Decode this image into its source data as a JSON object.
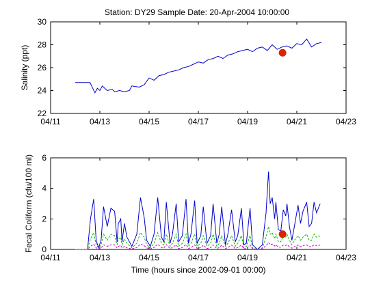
{
  "figure": {
    "title": "Station: DY29  Sample Date: 20-Apr-2004 10:00:00"
  },
  "chart_data": [
    {
      "type": "line",
      "title": "Station: DY29  Sample Date: 20-Apr-2004 10:00:00",
      "xlabel": "",
      "ylabel": "Salinity (ppt)",
      "xlim_days": [
        11,
        23
      ],
      "ylim": [
        22,
        30
      ],
      "x_ticks": [
        "04/11",
        "04/13",
        "04/15",
        "04/17",
        "04/19",
        "04/21",
        "04/23"
      ],
      "y_ticks": [
        "22",
        "24",
        "26",
        "28",
        "30"
      ],
      "grid": false,
      "series": [
        {
          "color": "#0000cc",
          "style": "solid",
          "x_days": [
            12.0,
            12.4,
            12.6,
            12.8,
            12.9,
            13.0,
            13.1,
            13.2,
            13.3,
            13.5,
            13.6,
            13.8,
            14.0,
            14.2,
            14.3,
            14.6,
            14.8,
            15.0,
            15.2,
            15.4,
            15.6,
            15.8,
            16.0,
            16.2,
            16.4,
            16.6,
            16.8,
            17.0,
            17.2,
            17.4,
            17.6,
            17.8,
            18.0,
            18.2,
            18.4,
            18.6,
            18.8,
            19.0,
            19.2,
            19.4,
            19.6,
            19.8,
            20.0,
            20.2,
            20.4,
            20.6,
            20.8,
            21.0,
            21.2,
            21.4,
            21.6,
            21.8,
            22.0
          ],
          "values": [
            24.7,
            24.7,
            24.7,
            23.8,
            24.2,
            24.0,
            24.4,
            24.2,
            24.0,
            24.1,
            23.9,
            24.0,
            23.9,
            24.0,
            24.4,
            24.3,
            24.5,
            25.1,
            24.9,
            25.3,
            25.4,
            25.6,
            25.7,
            25.8,
            26.0,
            26.1,
            26.3,
            26.5,
            26.4,
            26.7,
            26.8,
            27.0,
            26.8,
            27.1,
            27.2,
            27.4,
            27.5,
            27.6,
            27.4,
            27.7,
            27.8,
            27.5,
            28.0,
            27.6,
            27.8,
            27.9,
            27.7,
            28.1,
            28.0,
            28.5,
            27.8,
            28.1,
            28.2
          ]
        }
      ],
      "sample": {
        "color": "#dd2200",
        "x_days": 20.42,
        "value": 27.3
      }
    },
    {
      "type": "line",
      "title": "",
      "xlabel": "Time (hours since 2002-09-01 00:00)",
      "ylabel": "Fecal Coliform (cfu/100 ml)",
      "xlim_days": [
        11,
        23
      ],
      "ylim": [
        0,
        6
      ],
      "x_ticks": [
        "04/11",
        "04/13",
        "04/15",
        "04/17",
        "04/19",
        "04/21",
        "04/23"
      ],
      "y_ticks": [
        "0",
        "2",
        "4",
        "6"
      ],
      "grid": false,
      "series": [
        {
          "color": "#0000cc",
          "style": "solid",
          "x_days": [
            12.0,
            12.5,
            12.62,
            12.75,
            12.85,
            12.95,
            13.05,
            13.15,
            13.3,
            13.45,
            13.6,
            13.7,
            13.75,
            13.85,
            13.9,
            14.0,
            14.1,
            14.3,
            14.5,
            14.65,
            14.8,
            14.9,
            15.05,
            15.2,
            15.35,
            15.5,
            15.6,
            15.7,
            15.85,
            15.95,
            16.1,
            16.2,
            16.35,
            16.5,
            16.6,
            16.7,
            16.85,
            16.95,
            17.1,
            17.2,
            17.35,
            17.5,
            17.6,
            17.75,
            17.85,
            17.95,
            18.1,
            18.2,
            18.35,
            18.5,
            18.6,
            18.75,
            18.85,
            18.95,
            19.1,
            19.2,
            19.4,
            19.6,
            19.75,
            19.85,
            19.92,
            20.0,
            20.1,
            20.15,
            20.25,
            20.35,
            20.45,
            20.55,
            20.6,
            20.7,
            20.8,
            20.9,
            21.05,
            21.15,
            21.25,
            21.4,
            21.5,
            21.6,
            21.7,
            21.8,
            21.95
          ],
          "values": [
            0.0,
            0.0,
            2.0,
            3.3,
            0.6,
            0.1,
            0.6,
            2.8,
            1.5,
            2.7,
            2.5,
            0.5,
            1.7,
            2.0,
            0.5,
            1.7,
            0.8,
            0.2,
            1.0,
            3.4,
            2.1,
            0.6,
            0.2,
            1.0,
            3.4,
            0.8,
            0.5,
            3.1,
            0.4,
            1.0,
            3.0,
            0.5,
            0.9,
            3.3,
            0.4,
            1.0,
            3.2,
            0.4,
            0.9,
            2.8,
            0.4,
            0.9,
            3.0,
            0.4,
            1.0,
            2.8,
            0.3,
            1.0,
            2.6,
            0.5,
            0.9,
            2.7,
            0.3,
            0.4,
            2.7,
            0.3,
            0.0,
            0.3,
            2.4,
            5.1,
            3.0,
            3.4,
            2.0,
            3.1,
            1.3,
            1.2,
            2.6,
            2.2,
            3.0,
            1.5,
            0.6,
            1.5,
            2.9,
            1.7,
            2.5,
            3.1,
            1.5,
            1.7,
            3.1,
            2.4,
            3.0
          ]
        },
        {
          "color": "#00bb00",
          "style": "dashed",
          "x_days": [
            12.0,
            12.5,
            12.62,
            12.75,
            12.85,
            12.95,
            13.05,
            13.15,
            13.3,
            13.45,
            13.6,
            13.7,
            13.75,
            13.85,
            13.9,
            14.0,
            14.1,
            14.3,
            14.5,
            14.65,
            14.8,
            14.9,
            15.05,
            15.2,
            15.35,
            15.5,
            15.6,
            15.7,
            15.85,
            15.95,
            16.1,
            16.2,
            16.35,
            16.5,
            16.6,
            16.7,
            16.85,
            16.95,
            17.1,
            17.2,
            17.35,
            17.5,
            17.6,
            17.75,
            17.85,
            17.95,
            18.1,
            18.2,
            18.35,
            18.5,
            18.6,
            18.75,
            18.85,
            18.95,
            19.1,
            19.2,
            19.4,
            19.6,
            19.75,
            19.85,
            19.92,
            20.0,
            20.1,
            20.15,
            20.25,
            20.35,
            20.45,
            20.55,
            20.6,
            20.7,
            20.8,
            20.9,
            21.05,
            21.15,
            21.25,
            21.4,
            21.5,
            21.6,
            21.7,
            21.8,
            21.95
          ],
          "values": [
            0.0,
            0.0,
            0.7,
            1.1,
            0.3,
            0.1,
            0.3,
            1.0,
            0.6,
            1.0,
            0.9,
            0.3,
            0.7,
            0.8,
            0.3,
            0.7,
            0.4,
            0.1,
            0.4,
            1.1,
            0.8,
            0.3,
            0.1,
            0.4,
            1.1,
            0.4,
            0.3,
            1.0,
            0.2,
            0.4,
            1.0,
            0.2,
            0.4,
            1.0,
            0.2,
            0.4,
            1.0,
            0.2,
            0.4,
            0.9,
            0.2,
            0.4,
            1.0,
            0.2,
            0.4,
            0.9,
            0.2,
            0.4,
            0.9,
            0.2,
            0.4,
            0.9,
            0.1,
            0.2,
            0.9,
            0.1,
            0.0,
            0.1,
            0.8,
            1.5,
            1.0,
            1.1,
            0.7,
            1.0,
            0.5,
            0.5,
            0.9,
            0.8,
            1.0,
            0.6,
            0.3,
            0.6,
            0.9,
            0.6,
            0.8,
            1.0,
            0.6,
            0.6,
            1.0,
            0.8,
            0.9
          ]
        },
        {
          "color": "#cc00cc",
          "style": "dashed",
          "x_days": [
            12.0,
            12.5,
            12.62,
            12.75,
            12.85,
            12.95,
            13.05,
            13.15,
            13.3,
            13.45,
            13.6,
            13.7,
            13.75,
            13.85,
            13.9,
            14.0,
            14.1,
            14.3,
            14.5,
            14.65,
            14.8,
            14.9,
            15.05,
            15.2,
            15.35,
            15.5,
            15.6,
            15.7,
            15.85,
            15.95,
            16.1,
            16.2,
            16.35,
            16.5,
            16.6,
            16.7,
            16.85,
            16.95,
            17.1,
            17.2,
            17.35,
            17.5,
            17.6,
            17.75,
            17.85,
            17.95,
            18.1,
            18.2,
            18.35,
            18.5,
            18.6,
            18.75,
            18.85,
            18.95,
            19.1,
            19.2,
            19.4,
            19.6,
            19.75,
            19.85,
            19.92,
            20.0,
            20.1,
            20.15,
            20.25,
            20.35,
            20.45,
            20.55,
            20.6,
            20.7,
            20.8,
            20.9,
            21.05,
            21.15,
            21.25,
            21.4,
            21.5,
            21.6,
            21.7,
            21.8,
            21.95
          ],
          "values": [
            0.0,
            0.0,
            0.2,
            0.35,
            0.1,
            0.03,
            0.1,
            0.3,
            0.2,
            0.3,
            0.3,
            0.1,
            0.2,
            0.25,
            0.1,
            0.2,
            0.1,
            0.03,
            0.12,
            0.35,
            0.25,
            0.1,
            0.03,
            0.12,
            0.35,
            0.12,
            0.1,
            0.32,
            0.06,
            0.12,
            0.3,
            0.06,
            0.12,
            0.32,
            0.06,
            0.12,
            0.3,
            0.06,
            0.12,
            0.28,
            0.06,
            0.12,
            0.3,
            0.06,
            0.12,
            0.28,
            0.06,
            0.12,
            0.28,
            0.06,
            0.12,
            0.28,
            0.04,
            0.06,
            0.28,
            0.04,
            0.0,
            0.04,
            0.25,
            0.45,
            0.3,
            0.35,
            0.22,
            0.3,
            0.15,
            0.15,
            0.28,
            0.25,
            0.3,
            0.18,
            0.08,
            0.18,
            0.28,
            0.18,
            0.25,
            0.3,
            0.18,
            0.18,
            0.3,
            0.25,
            0.28
          ]
        }
      ],
      "sample": {
        "color": "#dd2200",
        "x_days": 20.42,
        "value": 1.0
      }
    }
  ]
}
